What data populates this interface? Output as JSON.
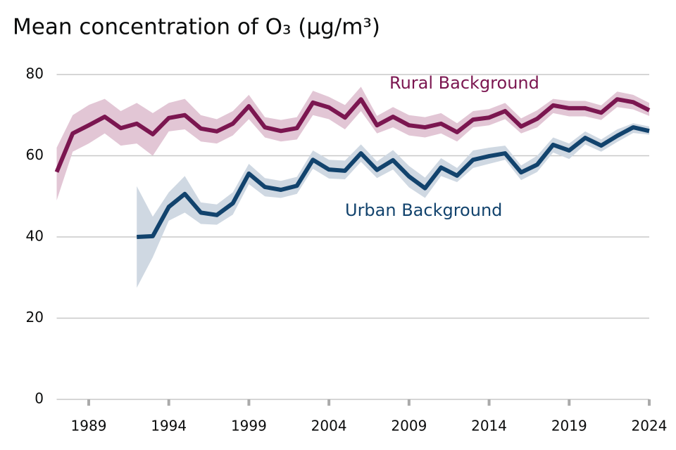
{
  "chart_data": {
    "type": "line",
    "title": "Mean concentration of O₃ (µg/m³)",
    "x": [
      1987,
      1988,
      1989,
      1990,
      1991,
      1992,
      1993,
      1994,
      1995,
      1996,
      1997,
      1998,
      1999,
      2000,
      2001,
      2002,
      2003,
      2004,
      2005,
      2006,
      2007,
      2008,
      2009,
      2010,
      2011,
      2012,
      2013,
      2014,
      2015,
      2016,
      2017,
      2018,
      2019,
      2020,
      2021,
      2022,
      2023,
      2024
    ],
    "xlim": [
      1987,
      2024
    ],
    "xticks": [
      1989,
      1994,
      1999,
      2004,
      2009,
      2014,
      2019,
      2024
    ],
    "ylim": [
      0,
      80
    ],
    "yticks": [
      0,
      20,
      40,
      60,
      80
    ],
    "grid": true,
    "series": [
      {
        "name": "Rural Background",
        "color": "#7b1650",
        "band_color": "#e2c6d5",
        "values": [
          56,
          65.5,
          67.5,
          69.6,
          66.8,
          67.9,
          65.3,
          69.3,
          70,
          66.7,
          66,
          67.9,
          72.2,
          67,
          66.1,
          66.8,
          73.1,
          71.9,
          69.4,
          73.9,
          67.5,
          69.6,
          67.5,
          67,
          67.9,
          65.8,
          68.9,
          69.4,
          71,
          67.2,
          69.1,
          72.4,
          71.7,
          71.7,
          70.6,
          73.9,
          73.2,
          71.2
        ],
        "lower": [
          49,
          61,
          63,
          65.5,
          62.5,
          63,
          60,
          66,
          66.5,
          63.5,
          63,
          65,
          69,
          64.5,
          63.5,
          64,
          70,
          69,
          66.5,
          71,
          65.5,
          67,
          65,
          64.5,
          65.5,
          63.5,
          67,
          67.5,
          69,
          65.5,
          67,
          70.5,
          69.7,
          69.7,
          68.8,
          72,
          71.4,
          69.8
        ],
        "upper": [
          62,
          70,
          72.5,
          74,
          71,
          73,
          70.5,
          73,
          74,
          70,
          69,
          71,
          75,
          69.5,
          68.8,
          69.5,
          76,
          74.5,
          72.5,
          77,
          69.8,
          72,
          70,
          69.5,
          70.5,
          68,
          71,
          71.5,
          73,
          69.2,
          71.2,
          74,
          73.5,
          73.5,
          72.4,
          75.8,
          75,
          73
        ]
      },
      {
        "name": "Urban Background",
        "color": "#12436d",
        "band_color": "#cfd8e2",
        "values": [
          null,
          null,
          null,
          null,
          null,
          40,
          40.2,
          47.4,
          50.6,
          46,
          45.4,
          48.3,
          55.6,
          52.3,
          51.6,
          52.6,
          59,
          56.6,
          56.3,
          60.6,
          56.5,
          58.9,
          54.9,
          52,
          57.1,
          55.1,
          59,
          59.9,
          60.6,
          55.9,
          57.8,
          62.7,
          61.3,
          64.4,
          62.5,
          64.9,
          67,
          66.1
        ],
        "lower": [
          null,
          null,
          null,
          null,
          null,
          27.5,
          35,
          44,
          46,
          43.2,
          43,
          45.5,
          53,
          50,
          49.6,
          50.6,
          56.8,
          54.4,
          54.2,
          58.5,
          54.5,
          56.6,
          52.2,
          49.6,
          55,
          53.5,
          57,
          58,
          59,
          54,
          56,
          60.8,
          59.2,
          62.8,
          61,
          63.4,
          65.6,
          65.2
        ],
        "upper": [
          null,
          null,
          null,
          null,
          null,
          52.5,
          45,
          51,
          55,
          48.5,
          48,
          51,
          58,
          54.5,
          53.8,
          54.8,
          61.3,
          59,
          58.8,
          62.8,
          58.6,
          61.4,
          57.5,
          54.6,
          59.4,
          57,
          61.3,
          62,
          62.5,
          57.6,
          60,
          64.5,
          63,
          66,
          64,
          66.5,
          68,
          67.2
        ]
      }
    ]
  }
}
